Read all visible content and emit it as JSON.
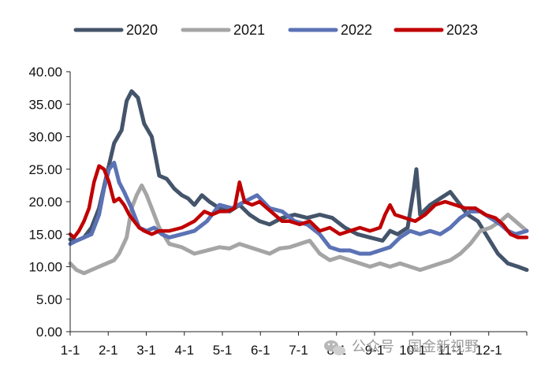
{
  "chart_data": {
    "type": "line",
    "title": "",
    "xlabel": "",
    "ylabel": "",
    "ylim": [
      0,
      40
    ],
    "y_ticks": [
      "0.00",
      "5.00",
      "10.00",
      "15.00",
      "20.00",
      "25.00",
      "30.00",
      "35.00",
      "40.00"
    ],
    "x_ticks": [
      "1-1",
      "2-1",
      "3-1",
      "4-1",
      "5-1",
      "6-1",
      "7-1",
      "8-1",
      "9-1",
      "10-1",
      "11-1",
      "12-1"
    ],
    "x_unit": "day of year (1-365)",
    "legend_position": "top",
    "series": [
      {
        "name": "2020",
        "color": "#44546a",
        "x": [
          1,
          6,
          12,
          18,
          24,
          30,
          36,
          42,
          46,
          50,
          55,
          60,
          66,
          72,
          78,
          84,
          90,
          95,
          100,
          106,
          112,
          120,
          128,
          136,
          144,
          152,
          160,
          170,
          180,
          190,
          200,
          210,
          220,
          230,
          240,
          250,
          256,
          262,
          270,
          275,
          277,
          280,
          288,
          296,
          304,
          310,
          318,
          326,
          334,
          342,
          350,
          358,
          365
        ],
        "values": [
          14.2,
          14.0,
          14.5,
          16.0,
          19.0,
          24.0,
          29.0,
          31.0,
          35.5,
          37.0,
          36.0,
          32.0,
          30.0,
          24.0,
          23.5,
          22.0,
          21.0,
          20.5,
          19.5,
          21.0,
          20.0,
          19.0,
          18.5,
          19.5,
          18.0,
          17.0,
          16.5,
          17.5,
          18.0,
          17.5,
          18.0,
          17.5,
          16.0,
          15.0,
          14.5,
          14.0,
          15.5,
          15.0,
          16.0,
          22.0,
          25.0,
          18.0,
          19.5,
          20.5,
          21.5,
          20.0,
          18.0,
          17.0,
          14.5,
          12.0,
          10.5,
          10.0,
          9.5
        ]
      },
      {
        "name": "2021",
        "color": "#a5a5a5",
        "x": [
          1,
          6,
          12,
          18,
          24,
          30,
          36,
          40,
          46,
          50,
          54,
          58,
          62,
          66,
          72,
          80,
          90,
          100,
          110,
          120,
          128,
          136,
          144,
          152,
          160,
          168,
          176,
          184,
          192,
          200,
          208,
          216,
          224,
          232,
          240,
          248,
          256,
          264,
          272,
          280,
          288,
          296,
          304,
          312,
          320,
          328,
          336,
          344,
          350,
          356,
          365
        ],
        "values": [
          10.5,
          9.5,
          9.0,
          9.5,
          10.0,
          10.5,
          11.0,
          12.0,
          14.5,
          19.0,
          21.0,
          22.5,
          21.0,
          19.0,
          16.0,
          13.5,
          13.0,
          12.0,
          12.5,
          13.0,
          12.8,
          13.5,
          13.0,
          12.5,
          12.0,
          12.8,
          13.0,
          13.5,
          14.0,
          12.0,
          11.0,
          11.5,
          11.0,
          10.5,
          10.0,
          10.5,
          10.0,
          10.5,
          10.0,
          9.5,
          10.0,
          10.5,
          11.0,
          12.0,
          13.5,
          15.5,
          16.0,
          17.0,
          18.0,
          17.0,
          15.5
        ]
      },
      {
        "name": "2022",
        "color": "#5b72b5",
        "x": [
          1,
          6,
          12,
          18,
          24,
          28,
          32,
          36,
          40,
          44,
          50,
          56,
          62,
          68,
          74,
          80,
          90,
          100,
          110,
          120,
          130,
          140,
          150,
          160,
          170,
          180,
          190,
          200,
          208,
          216,
          224,
          232,
          240,
          248,
          256,
          264,
          272,
          280,
          288,
          296,
          304,
          312,
          320,
          328,
          336,
          344,
          350,
          356,
          365
        ],
        "values": [
          13.5,
          14.0,
          14.5,
          15.0,
          18.0,
          22.0,
          25.0,
          26.0,
          23.0,
          21.5,
          19.0,
          16.0,
          15.5,
          16.0,
          15.0,
          14.5,
          15.0,
          15.5,
          17.0,
          19.5,
          19.0,
          20.0,
          21.0,
          19.0,
          18.5,
          17.0,
          16.5,
          15.0,
          13.0,
          12.5,
          12.5,
          12.0,
          12.0,
          12.5,
          13.0,
          14.5,
          15.5,
          15.0,
          15.5,
          15.0,
          16.0,
          17.5,
          18.5,
          18.5,
          17.5,
          16.5,
          15.5,
          15.0,
          15.5
        ]
      },
      {
        "name": "2023",
        "color": "#c00000",
        "x": [
          1,
          4,
          8,
          12,
          16,
          20,
          24,
          28,
          32,
          36,
          40,
          44,
          48,
          52,
          56,
          60,
          66,
          72,
          80,
          90,
          100,
          108,
          114,
          120,
          126,
          132,
          136,
          140,
          146,
          152,
          158,
          164,
          170,
          176,
          184,
          192,
          200,
          208,
          216,
          224,
          232,
          240,
          248,
          252,
          256,
          260,
          268,
          276,
          284,
          292,
          300,
          308,
          316,
          324,
          332,
          340,
          346,
          352,
          358,
          365
        ],
        "values": [
          15.0,
          14.5,
          15.5,
          17.0,
          19.0,
          23.0,
          25.5,
          25.0,
          23.0,
          20.0,
          20.5,
          19.5,
          18.0,
          17.0,
          16.0,
          15.5,
          15.0,
          15.5,
          15.5,
          16.0,
          17.0,
          18.5,
          18.0,
          18.5,
          18.5,
          19.0,
          23.0,
          20.0,
          19.5,
          20.0,
          19.0,
          18.0,
          17.0,
          17.0,
          16.5,
          17.0,
          15.5,
          16.0,
          15.0,
          15.5,
          16.0,
          15.5,
          16.0,
          18.0,
          19.5,
          18.0,
          17.5,
          17.0,
          18.0,
          19.5,
          20.0,
          19.5,
          19.0,
          19.0,
          18.0,
          17.5,
          16.5,
          15.0,
          14.5,
          14.5
        ]
      }
    ]
  },
  "watermark": {
    "text": "公众号 · 国金新视野",
    "icon": "wechat-icon"
  }
}
